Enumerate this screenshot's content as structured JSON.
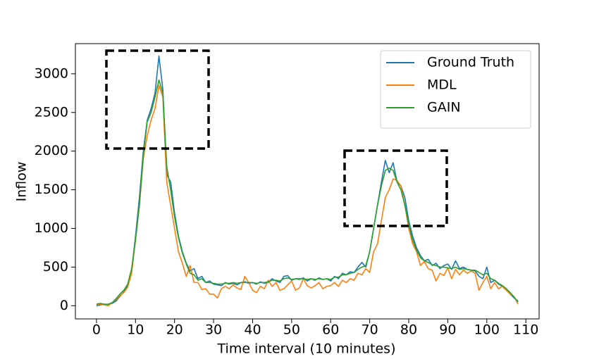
{
  "chart_data": {
    "type": "line",
    "xlabel": "Time interval (10 minutes)",
    "ylabel": "Inflow",
    "x": [
      0,
      1,
      2,
      3,
      4,
      5,
      6,
      7,
      8,
      9,
      10,
      11,
      12,
      13,
      14,
      15,
      16,
      17,
      18,
      19,
      20,
      21,
      22,
      23,
      24,
      25,
      26,
      27,
      28,
      29,
      30,
      31,
      32,
      33,
      34,
      35,
      36,
      37,
      38,
      39,
      40,
      41,
      42,
      43,
      44,
      45,
      46,
      47,
      48,
      49,
      50,
      51,
      52,
      53,
      54,
      55,
      56,
      57,
      58,
      59,
      60,
      61,
      62,
      63,
      64,
      65,
      66,
      67,
      68,
      69,
      70,
      71,
      72,
      73,
      74,
      75,
      76,
      77,
      78,
      79,
      80,
      81,
      82,
      83,
      84,
      85,
      86,
      87,
      88,
      89,
      90,
      91,
      92,
      93,
      94,
      95,
      96,
      97,
      98,
      99,
      100,
      101,
      102,
      103,
      104,
      105,
      106,
      107,
      108
    ],
    "series": [
      {
        "name": "Ground Truth",
        "color": "#1f77b4",
        "values": [
          0,
          10,
          20,
          15,
          30,
          60,
          120,
          180,
          260,
          450,
          900,
          1400,
          2000,
          2400,
          2550,
          2750,
          3230,
          2800,
          1700,
          1600,
          1200,
          900,
          700,
          550,
          450,
          480,
          350,
          380,
          300,
          320,
          280,
          270,
          260,
          300,
          280,
          290,
          270,
          300,
          310,
          290,
          300,
          280,
          310,
          290,
          300,
          350,
          320,
          300,
          380,
          390,
          330,
          350,
          340,
          360,
          320,
          350,
          330,
          360,
          340,
          350,
          320,
          380,
          350,
          420,
          400,
          440,
          430,
          500,
          560,
          500,
          700,
          1000,
          1300,
          1600,
          1880,
          1720,
          1850,
          1600,
          1550,
          1400,
          1100,
          900,
          750,
          650,
          580,
          600,
          520,
          550,
          480,
          520,
          540,
          470,
          580,
          480,
          500,
          470,
          460,
          450,
          380,
          350,
          500,
          300,
          330,
          280,
          250,
          200,
          150,
          100,
          60
        ]
      },
      {
        "name": "MDL",
        "color": "#ff7f0e",
        "values": [
          10,
          20,
          10,
          0,
          40,
          80,
          130,
          170,
          240,
          420,
          850,
          1300,
          1900,
          2200,
          2400,
          2550,
          2850,
          2700,
          1600,
          1300,
          1000,
          700,
          550,
          380,
          520,
          300,
          300,
          210,
          220,
          150,
          150,
          100,
          220,
          250,
          220,
          270,
          230,
          210,
          380,
          300,
          200,
          170,
          250,
          220,
          330,
          250,
          300,
          200,
          220,
          270,
          320,
          200,
          230,
          350,
          260,
          230,
          260,
          300,
          220,
          250,
          260,
          300,
          250,
          330,
          300,
          350,
          330,
          420,
          400,
          480,
          430,
          700,
          800,
          1100,
          1400,
          1500,
          1640,
          1620,
          1550,
          1300,
          1000,
          800,
          700,
          520,
          570,
          480,
          460,
          320,
          420,
          390,
          490,
          350,
          470,
          400,
          460,
          420,
          450,
          420,
          200,
          300,
          380,
          220,
          300,
          220,
          250,
          200,
          150,
          120,
          20
        ]
      },
      {
        "name": "GAIN",
        "color": "#2ca02c",
        "values": [
          20,
          30,
          20,
          20,
          40,
          90,
          150,
          200,
          280,
          480,
          850,
          1300,
          1950,
          2380,
          2500,
          2700,
          2920,
          2750,
          1800,
          1500,
          1150,
          880,
          680,
          540,
          420,
          400,
          330,
          350,
          300,
          300,
          290,
          280,
          280,
          290,
          290,
          300,
          290,
          300,
          300,
          300,
          300,
          290,
          300,
          300,
          310,
          330,
          330,
          320,
          350,
          360,
          340,
          350,
          350,
          350,
          340,
          350,
          340,
          350,
          340,
          350,
          340,
          370,
          370,
          400,
          400,
          420,
          430,
          470,
          500,
          520,
          700,
          1000,
          1300,
          1550,
          1750,
          1780,
          1750,
          1600,
          1500,
          1300,
          1050,
          850,
          720,
          620,
          580,
          560,
          530,
          520,
          500,
          500,
          490,
          480,
          500,
          470,
          480,
          470,
          460,
          460,
          430,
          400,
          420,
          350,
          330,
          290,
          260,
          220,
          170,
          110,
          50
        ]
      }
    ],
    "xlim": [
      -5.4,
      113.4
    ],
    "xticks": [
      0,
      10,
      20,
      30,
      40,
      50,
      60,
      70,
      80,
      90,
      100,
      110
    ],
    "ylim": [
      -170,
      3390
    ],
    "yticks": [
      0,
      500,
      1000,
      1500,
      2000,
      2500,
      3000
    ],
    "legend": "upper right"
  }
}
